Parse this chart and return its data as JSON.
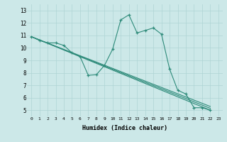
{
  "xlabel": "Humidex (Indice chaleur)",
  "line_color": "#2e8b7a",
  "bg_color": "#cce8e8",
  "grid_color": "#afd4d4",
  "xlim": [
    -0.5,
    23.5
  ],
  "ylim": [
    4.5,
    13.5
  ],
  "xticks": [
    0,
    1,
    2,
    3,
    4,
    5,
    6,
    7,
    8,
    9,
    10,
    11,
    12,
    13,
    14,
    15,
    16,
    17,
    18,
    19,
    20,
    21,
    22,
    23
  ],
  "yticks": [
    5,
    6,
    7,
    8,
    9,
    10,
    11,
    12,
    13
  ],
  "lines": [
    {
      "x": [
        0,
        1,
        2,
        3,
        4,
        5,
        6,
        7,
        8,
        9,
        10,
        11,
        12,
        13,
        14,
        15,
        16,
        17,
        18,
        19,
        20,
        21,
        22
      ],
      "y": [
        10.9,
        10.6,
        10.4,
        10.4,
        10.2,
        9.6,
        9.3,
        7.8,
        7.85,
        8.6,
        9.9,
        12.25,
        12.65,
        11.2,
        11.4,
        11.6,
        11.1,
        8.3,
        6.6,
        6.3,
        5.2,
        5.2,
        5.0
      ]
    },
    {
      "x": [
        0,
        22
      ],
      "y": [
        10.9,
        5.0
      ]
    },
    {
      "x": [
        0,
        22
      ],
      "y": [
        10.9,
        5.15
      ]
    },
    {
      "x": [
        0,
        22
      ],
      "y": [
        10.9,
        5.3
      ]
    }
  ],
  "line_markers": [
    true,
    false,
    false,
    false
  ],
  "figsize": [
    3.2,
    2.0
  ],
  "dpi": 100
}
